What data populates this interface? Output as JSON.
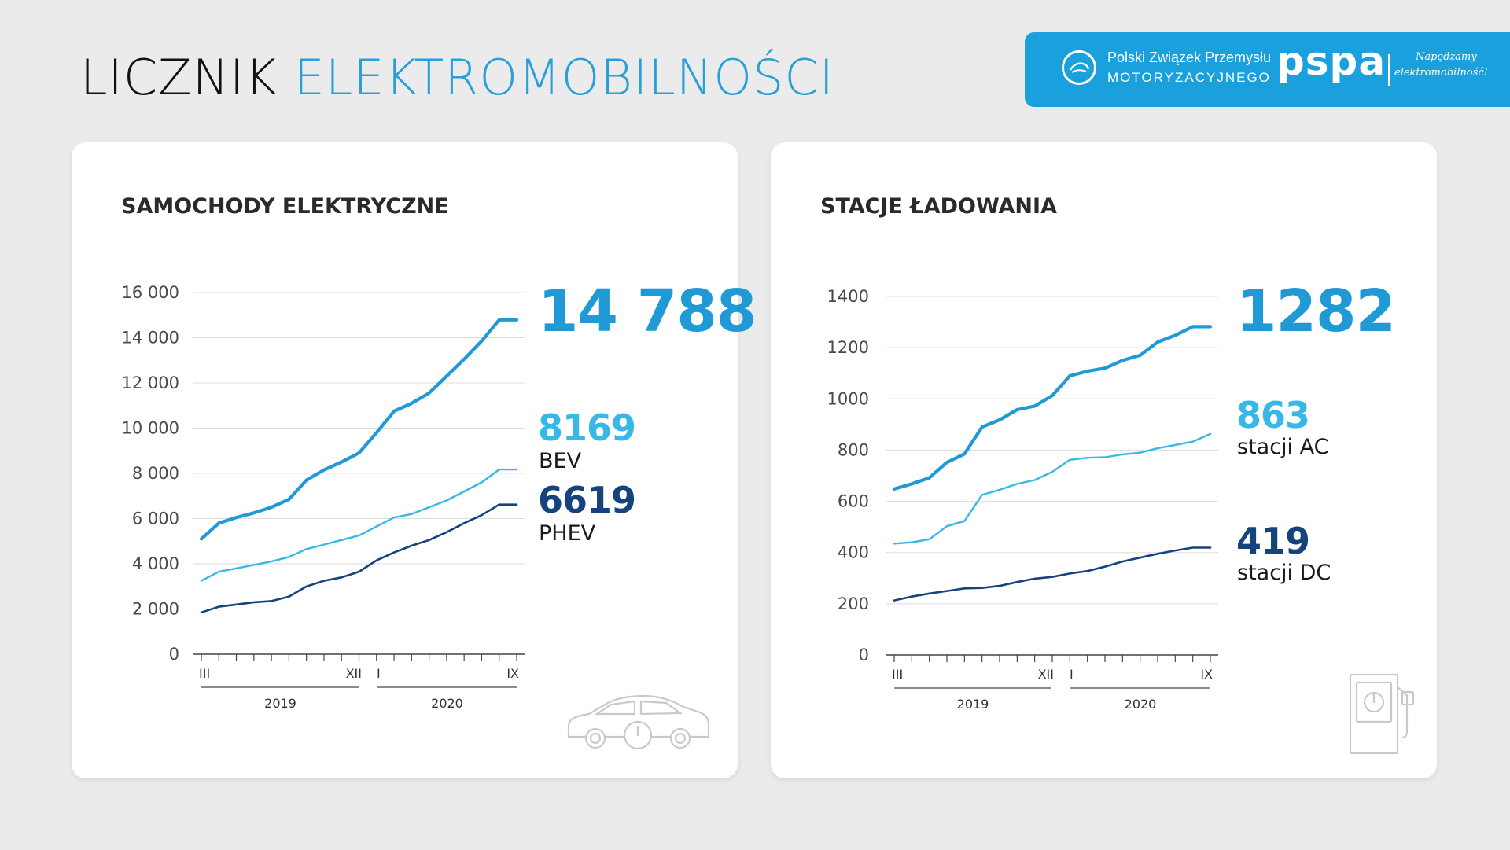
{
  "header": {
    "title_part1": "LICZNIK",
    "title_part2": "ELEKTROMOBILNOŚCI"
  },
  "brand": {
    "association_line1": "Polski Związek Przemysłu",
    "association_line2": "MOTORYZACYJNEGO",
    "pspa_logo": "pspa",
    "tagline_line1": "Napędzamy",
    "tagline_line2": "elektromobilność!",
    "emblem_icon": "pzpm-emblem-icon",
    "color": "#1aa0dc"
  },
  "colors": {
    "total": "#1f9ad6",
    "bev": "#38b8e6",
    "phev": "#17437d",
    "grid": "#dddddd",
    "axis": "#444444"
  },
  "chart_data": [
    {
      "type": "line",
      "title": "SAMOCHODY ELEKTRYCZNE",
      "x_ticks": [
        "III",
        "XII",
        "I",
        "IX"
      ],
      "x_groups": [
        "2019",
        "2020"
      ],
      "ylim": [
        0,
        16000
      ],
      "yticks": [
        "0",
        "2 000",
        "4 000",
        "6 000",
        "8 000",
        "10 000",
        "12 000",
        "14 000",
        "16 000"
      ],
      "grid": true,
      "months": [
        "III-2019",
        "IV-2019",
        "V-2019",
        "VI-2019",
        "VII-2019",
        "VIII-2019",
        "IX-2019",
        "X-2019",
        "XI-2019",
        "XII-2019",
        "I-2020",
        "II-2020",
        "III-2020",
        "IV-2020",
        "V-2020",
        "VI-2020",
        "VII-2020",
        "VIII-2020",
        "IX-2020"
      ],
      "series": [
        {
          "key": "total",
          "values": [
            5100,
            5800,
            6050,
            6250,
            6500,
            6850,
            7700,
            8150,
            8500,
            8900,
            9800,
            10750,
            11100,
            11550,
            12300,
            13050,
            13850,
            14788,
            14788
          ]
        },
        {
          "key": "bev",
          "name": "BEV",
          "values": [
            3250,
            3650,
            3800,
            3950,
            4100,
            4300,
            4650,
            4850,
            5050,
            5250,
            5650,
            6050,
            6200,
            6500,
            6800,
            7200,
            7600,
            8169,
            8169
          ]
        },
        {
          "key": "phev",
          "name": "PHEV",
          "values": [
            1850,
            2100,
            2200,
            2300,
            2350,
            2550,
            3000,
            3250,
            3400,
            3650,
            4150,
            4500,
            4800,
            5050,
            5400,
            5800,
            6150,
            6619,
            6619
          ]
        }
      ],
      "callouts": [
        {
          "value": "14 788",
          "label": ""
        },
        {
          "value": "8169",
          "label": "BEV"
        },
        {
          "value": "6619",
          "label": "PHEV"
        }
      ],
      "deco_icon": "electric-car-icon"
    },
    {
      "type": "line",
      "title": "STACJE ŁADOWANIA",
      "x_ticks": [
        "III",
        "XII",
        "I",
        "IX"
      ],
      "x_groups": [
        "2019",
        "2020"
      ],
      "ylim": [
        0,
        1400
      ],
      "yticks": [
        "0",
        "200",
        "400",
        "600",
        "800",
        "1000",
        "1200",
        "1400"
      ],
      "grid": true,
      "months": [
        "III-2019",
        "IV-2019",
        "V-2019",
        "VI-2019",
        "VII-2019",
        "VIII-2019",
        "IX-2019",
        "X-2019",
        "XI-2019",
        "XII-2019",
        "I-2020",
        "II-2020",
        "III-2020",
        "IV-2020",
        "V-2020",
        "VI-2020",
        "VII-2020",
        "VIII-2020",
        "IX-2020"
      ],
      "series": [
        {
          "key": "total",
          "values": [
            648,
            668,
            692,
            752,
            785,
            890,
            918,
            958,
            972,
            1013,
            1090,
            1108,
            1120,
            1150,
            1170,
            1222,
            1248,
            1282,
            1282
          ]
        },
        {
          "key": "bev",
          "name": "AC",
          "values": [
            435,
            440,
            452,
            503,
            523,
            625,
            645,
            668,
            683,
            715,
            762,
            770,
            772,
            783,
            790,
            807,
            820,
            833,
            863
          ]
        },
        {
          "key": "phev",
          "name": "DC",
          "values": [
            213,
            228,
            240,
            250,
            260,
            262,
            270,
            285,
            298,
            305,
            318,
            328,
            345,
            365,
            380,
            395,
            408,
            419,
            419
          ]
        }
      ],
      "callouts": [
        {
          "value": "1282",
          "label": ""
        },
        {
          "value": "863",
          "label": "stacji AC"
        },
        {
          "value": "419",
          "label": "stacji DC"
        }
      ],
      "deco_icon": "charging-station-icon"
    }
  ]
}
